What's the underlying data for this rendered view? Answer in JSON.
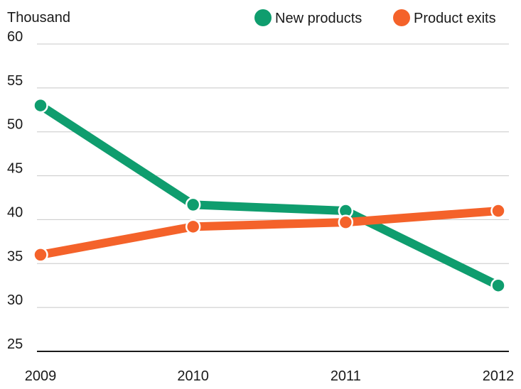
{
  "chart_data": {
    "type": "line",
    "unit_label": "Thousand",
    "categories": [
      "2009",
      "2010",
      "2011",
      "2012"
    ],
    "ylim": [
      25,
      60
    ],
    "yticks": [
      25,
      30,
      35,
      40,
      45,
      50,
      55,
      60
    ],
    "grid": true,
    "legend_position": "top-right",
    "series": [
      {
        "name": "New products",
        "color": "#0f9d6e",
        "values": [
          53.0,
          41.7,
          41.0,
          32.5
        ]
      },
      {
        "name": "Product exits",
        "color": "#f4622a",
        "values": [
          36.0,
          39.2,
          39.7,
          41.0
        ]
      }
    ]
  }
}
